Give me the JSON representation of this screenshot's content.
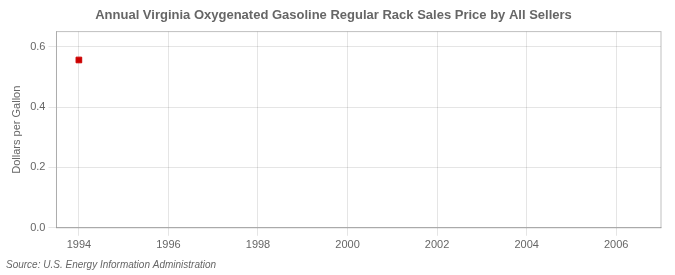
{
  "chart_data": {
    "type": "scatter",
    "title": "Annual Virginia Oxygenated Gasoline Regular Rack Sales Price by All Sellers",
    "ylabel": "Dollars per Gallon",
    "source": "Source: U.S. Energy Information Administration",
    "x": [
      1994
    ],
    "values": [
      0.556
    ],
    "color": "#cc0000",
    "marker": "square",
    "xlim": [
      1993.5,
      2007.0
    ],
    "xticks": [
      1994,
      1996,
      1998,
      2000,
      2002,
      2004,
      2006
    ],
    "ylim": [
      0.0,
      0.65
    ],
    "yticks": [
      {
        "value": 0.0,
        "label": "0.0"
      },
      0.2,
      0.4,
      0.6
    ],
    "grid": true
  }
}
